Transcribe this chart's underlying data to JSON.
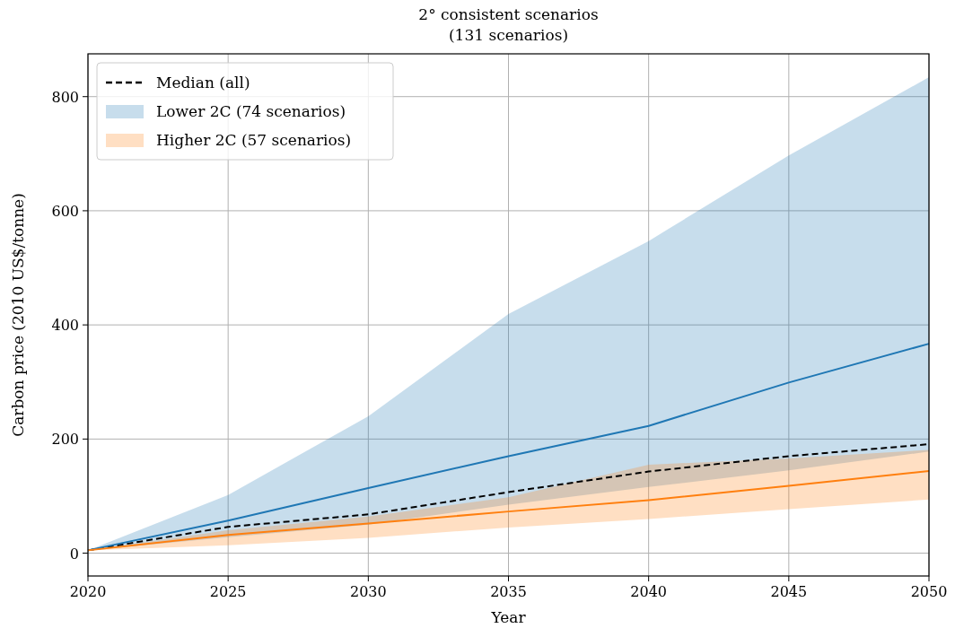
{
  "chart_data": {
    "type": "line",
    "title": "2° consistent scenarios",
    "subtitle": "(131 scenarios)",
    "xlabel": "Year",
    "ylabel": "Carbon price (2010 US$/tonne)",
    "x": [
      2020,
      2025,
      2030,
      2035,
      2040,
      2045,
      2050
    ],
    "series": [
      {
        "name": "Median (all)",
        "color": "#000000",
        "line_style": "dashed",
        "values": [
          5,
          46,
          68,
          107,
          143,
          170,
          191
        ]
      },
      {
        "name": "Lower 2C (74 scenarios)",
        "color": "#1f77b4",
        "values": [
          5,
          57,
          114,
          170,
          223,
          299,
          367
        ],
        "lower": [
          5,
          28,
          50,
          85,
          116,
          145,
          178
        ],
        "upper": [
          5,
          102,
          240,
          419,
          547,
          697,
          834
        ]
      },
      {
        "name": "Higher 2C (57 scenarios)",
        "color": "#ff7f0e",
        "values": [
          5,
          32,
          52,
          73,
          93,
          118,
          144
        ],
        "lower": [
          5,
          14,
          27,
          45,
          60,
          77,
          94
        ],
        "upper": [
          5,
          40,
          64,
          98,
          155,
          166,
          181
        ]
      }
    ],
    "xlim": [
      2020,
      2050
    ],
    "xticks": [
      2020,
      2025,
      2030,
      2035,
      2040,
      2045,
      2050
    ],
    "ylim": [
      -40,
      875
    ],
    "yticks": [
      0,
      200,
      400,
      600,
      800
    ],
    "grid": true,
    "legend": "top left",
    "line_style": "solid"
  }
}
